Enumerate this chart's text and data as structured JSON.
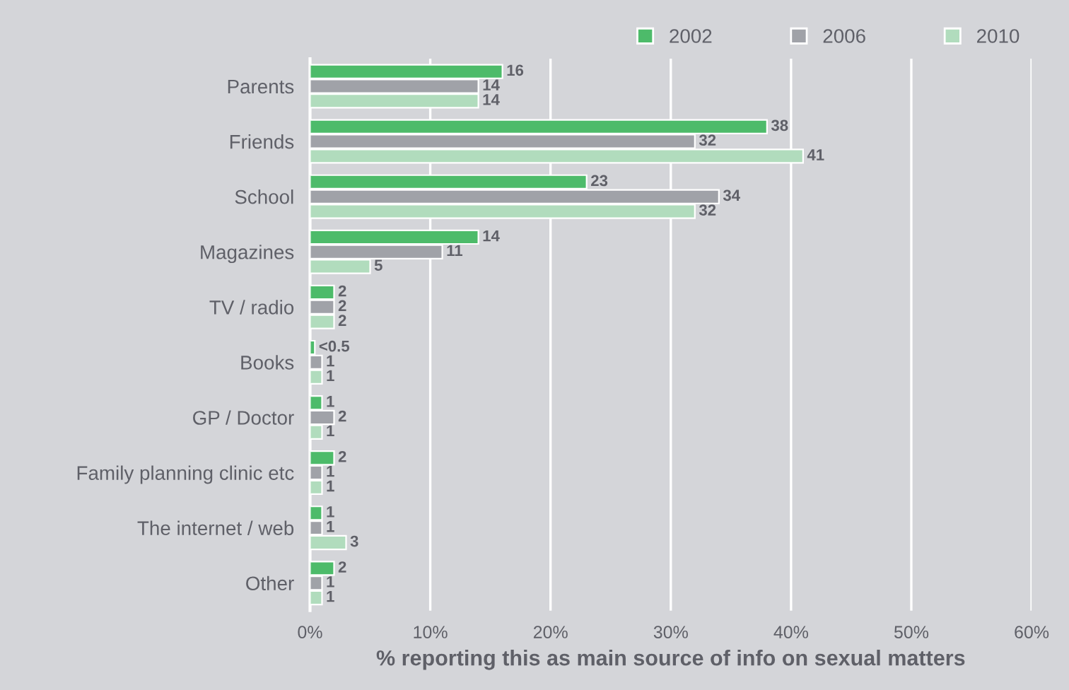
{
  "chart_data": {
    "type": "bar",
    "orientation": "horizontal",
    "categories": [
      "Parents",
      "Friends",
      "School",
      "Magazines",
      "TV / radio",
      "Books",
      "GP / Doctor",
      "Family planning clinic etc",
      "The internet / web",
      "Other"
    ],
    "series": [
      {
        "name": "2002",
        "color": "#4dbb6a",
        "values": [
          16,
          38,
          23,
          14,
          2,
          0.4,
          1,
          2,
          1,
          2
        ],
        "value_labels": [
          "16",
          "38",
          "23",
          "14",
          "2",
          "<0.5",
          "1",
          "2",
          "1",
          "2"
        ]
      },
      {
        "name": "2006",
        "color": "#a0a2a8",
        "values": [
          14,
          32,
          34,
          11,
          2,
          1,
          2,
          1,
          1,
          1
        ],
        "value_labels": [
          "14",
          "32",
          "34",
          "11",
          "2",
          "1",
          "2",
          "1",
          "1",
          "1"
        ]
      },
      {
        "name": "2010",
        "color": "#b1dcbd",
        "values": [
          14,
          41,
          32,
          5,
          2,
          1,
          1,
          1,
          3,
          1
        ],
        "value_labels": [
          "14",
          "41",
          "32",
          "5",
          "2",
          "1",
          "1",
          "1",
          "3",
          "1"
        ]
      }
    ],
    "xlabel": "% reporting this as main source of info on sexual matters",
    "xlim": [
      0,
      60
    ],
    "xticks": [
      {
        "value": 0,
        "label": "0%"
      },
      {
        "value": 10,
        "label": "10%"
      },
      {
        "value": 20,
        "label": "20%"
      },
      {
        "value": 30,
        "label": "30%"
      },
      {
        "value": 40,
        "label": "40%"
      },
      {
        "value": 50,
        "label": "50%"
      },
      {
        "value": 60,
        "label": "60%"
      }
    ],
    "grid": "x",
    "legend": "top right"
  }
}
